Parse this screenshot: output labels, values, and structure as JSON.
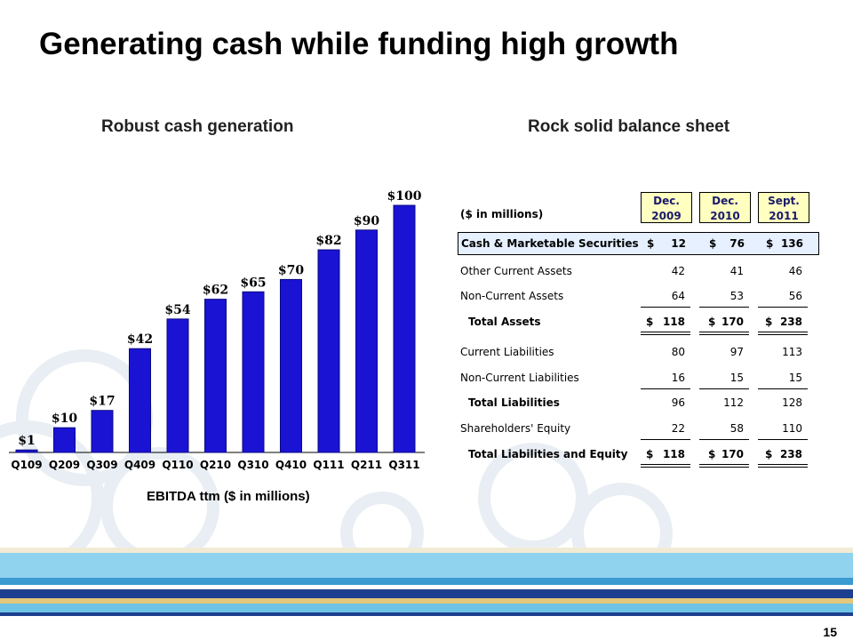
{
  "slide": {
    "title": "Generating cash while funding high growth",
    "left_heading": "Robust cash generation",
    "right_heading": "Rock solid balance sheet",
    "page_number": "15"
  },
  "colors": {
    "bar": "#1a13d4",
    "bar_dark": "#0a0880",
    "highlight": "#e6f0ff",
    "header_box": "#ffffc0"
  },
  "chart_data": {
    "type": "bar",
    "categories": [
      "Q109",
      "Q209",
      "Q309",
      "Q409",
      "Q110",
      "Q210",
      "Q310",
      "Q410",
      "Q111",
      "Q211",
      "Q311"
    ],
    "values": [
      1,
      10,
      17,
      42,
      54,
      62,
      65,
      70,
      82,
      90,
      100
    ],
    "data_labels": [
      "$1",
      "$10",
      "$17",
      "$42",
      "$54",
      "$62",
      "$65",
      "$70",
      "$82",
      "$90",
      "$100"
    ],
    "xlabel": "EBITDA ttm ($ in millions)",
    "ylim": [
      0,
      100
    ]
  },
  "table": {
    "units": "($ in millions)",
    "columns": [
      {
        "line1": "Dec.",
        "line2": "2009"
      },
      {
        "line1": "Dec.",
        "line2": "2010"
      },
      {
        "line1": "Sept.",
        "line2": "2011"
      }
    ],
    "rows": {
      "cash": {
        "label": "Cash & Marketable Securities",
        "v1": "12",
        "v2": "76",
        "v3": "136"
      },
      "oca": {
        "label": "Other Current Assets",
        "v1": "42",
        "v2": "41",
        "v3": "46"
      },
      "nca": {
        "label": "Non-Current Assets",
        "v1": "64",
        "v2": "53",
        "v3": "56"
      },
      "ta": {
        "label": "Total Assets",
        "v1": "118",
        "v2": "170",
        "v3": "238"
      },
      "cl": {
        "label": "Current Liabilities",
        "v1": "80",
        "v2": "97",
        "v3": "113"
      },
      "ncl": {
        "label": "Non-Current Liabilities",
        "v1": "16",
        "v2": "15",
        "v3": "15"
      },
      "tl": {
        "label": "Total Liabilities",
        "v1": "96",
        "v2": "112",
        "v3": "128"
      },
      "se": {
        "label": "Shareholders' Equity",
        "v1": "22",
        "v2": "58",
        "v3": "110"
      },
      "tle": {
        "label": "Total Liabilities and Equity",
        "v1": "118",
        "v2": "170",
        "v3": "238"
      }
    },
    "currency_symbol": "$"
  }
}
